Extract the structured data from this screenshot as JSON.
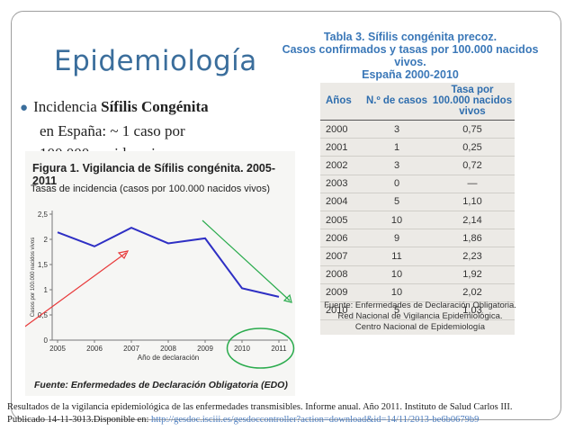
{
  "slide": {
    "title": "Epidemiología",
    "bullet": {
      "prefix": "Incidencia ",
      "bold": "Sífilis Congénita",
      "line2": "en España: ~ 1 caso por",
      "line3": "100.000 nacidos vivos."
    }
  },
  "figure": {
    "title": "Figura 1.   Vigilancia de Sífilis congénita. 2005-2011",
    "subtitle": "Tasas de incidencia (casos por 100.000 nacidos vivos)",
    "source": "Fuente: Enfermedades de Declaración Obligatoria (EDO)"
  },
  "chart_data": {
    "type": "line",
    "x": [
      2005,
      2006,
      2007,
      2008,
      2009,
      2010,
      2011
    ],
    "series": [
      {
        "values": [
          2.14,
          1.86,
          2.23,
          1.92,
          2.02,
          1.03,
          0.86
        ]
      }
    ],
    "xlabel": "Año de declaración",
    "ylabel": "Casos por 100.000 nacidos vivos",
    "yticks": [
      "0",
      "0,5",
      "1",
      "1,5",
      "2",
      "2,5"
    ],
    "ylim": [
      0,
      2.5
    ],
    "grid": false,
    "line_color": "#2e2fc4",
    "annotations": {
      "red_arrow_color": "#e8393a",
      "green_arrow_color": "#2aab4d",
      "green_circle_color": "#2aab4d"
    }
  },
  "table": {
    "title_lines": [
      "Tabla 3. Sífilis congénita precoz.",
      "Casos confirmados y tasas por 100.000 nacidos vivos.",
      "España 2000-2010"
    ],
    "headers": [
      "Años",
      "N.º de casos",
      "Tasa por 100.000 nacidos vivos"
    ],
    "rows": [
      [
        "2000",
        "3",
        "0,75"
      ],
      [
        "2001",
        "1",
        "0,25"
      ],
      [
        "2002",
        "3",
        "0,72"
      ],
      [
        "2003",
        "0",
        "—"
      ],
      [
        "2004",
        "5",
        "1,10"
      ],
      [
        "2005",
        "10",
        "2,14"
      ],
      [
        "2006",
        "9",
        "1,86"
      ],
      [
        "2007",
        "11",
        "2,23"
      ],
      [
        "2008",
        "10",
        "1,92"
      ],
      [
        "2009",
        "10",
        "2,02"
      ],
      [
        "2010",
        "5",
        "1,03"
      ]
    ],
    "source_lines": [
      "Fuente: Enfermedades de Declaración Obligatoria.",
      "Red Nacional de Vigilancia Epidemiológica.",
      "Centro Nacional de Epidemiología"
    ]
  },
  "reference": {
    "line1": "Resultados de la vigilancia epidemiológica de las enfermedades transmisibles. Informe anual. Año 2011.  Instituto de Salud Carlos III.",
    "line2_prefix": "Publicado 14-11-3013.Disponible en: ",
    "line2_link": "http://gesdoc.isciii.es/gesdoccontroller?action=download&id=14/11/2013-be6b0679b9"
  },
  "colors": {
    "title": "#3b6e9c",
    "table_title": "#3b78b8",
    "link": "#4b7cbe"
  }
}
